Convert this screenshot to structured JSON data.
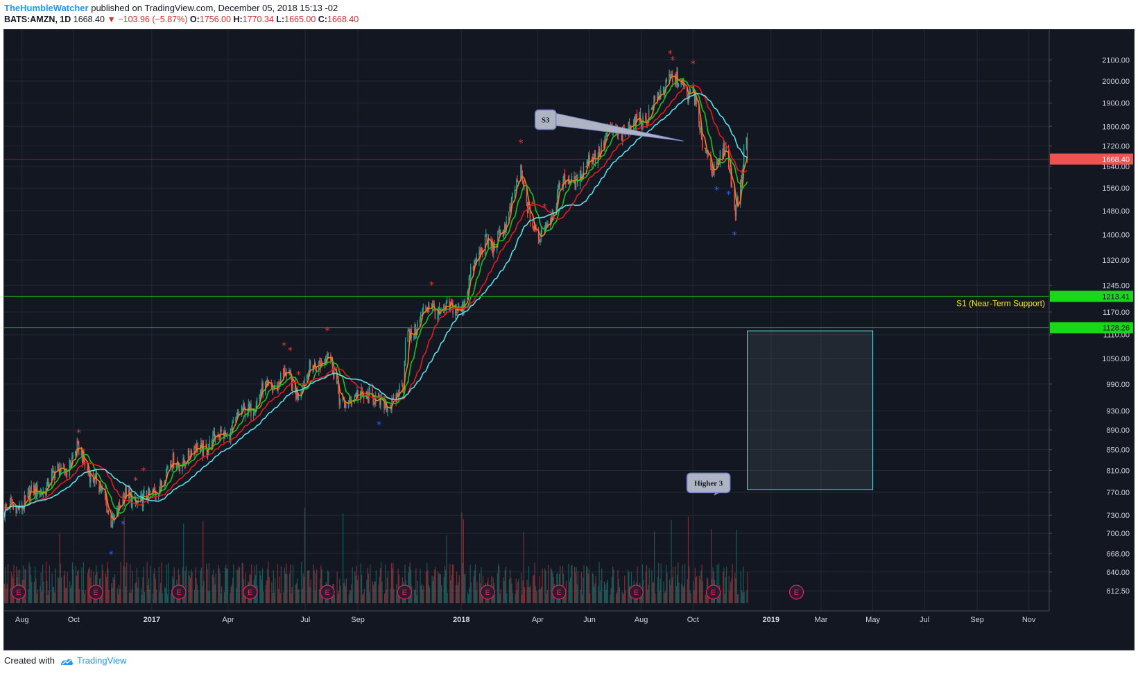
{
  "header": {
    "author": "TheHumbleWatcher",
    "published_text": "published on TradingView.com, December 05, 2018 15:13 -02",
    "symbol": "BATS:AMZN, 1D",
    "last": "1668.40",
    "change": "−103.96 (−5.87%)",
    "o_label": "O:",
    "o": "1756.00",
    "h_label": "H:",
    "h": "1770.34",
    "l_label": "L:",
    "l": "1665.00",
    "c_label": "C:",
    "c": "1668.40"
  },
  "footer": {
    "created_with": "Created with",
    "brand": "TradingView"
  },
  "colors": {
    "background": "#131722",
    "grid": "#232837",
    "price_up": "#26a69a",
    "price_down": "#ef5350",
    "sma_fast": "#f57f17",
    "sma_mid": "#1fbf1f",
    "sma_slow": "#e21b1b",
    "sma_200": "#5fdde6",
    "support_line": "#1b9e1b",
    "support_label": "#f4e316",
    "axis_text": "#d1d4dc",
    "earnings": "#e91e63"
  },
  "chart_data": {
    "type": "candlestick",
    "title": "",
    "y_scale": "log",
    "ylim": [
      600,
      2160
    ],
    "x_range": [
      "2016-07-11",
      "2019-11-25"
    ],
    "x_ticks": [
      {
        "date": "2016-08-01",
        "label": "Aug"
      },
      {
        "date": "2016-10-01",
        "label": "Oct"
      },
      {
        "date": "2017-01-01",
        "label": "2017"
      },
      {
        "date": "2017-04-01",
        "label": "Apr"
      },
      {
        "date": "2017-07-01",
        "label": "Jul"
      },
      {
        "date": "2017-09-01",
        "label": "Sep"
      },
      {
        "date": "2018-01-01",
        "label": "2018"
      },
      {
        "date": "2018-04-01",
        "label": "Apr"
      },
      {
        "date": "2018-06-01",
        "label": "Jun"
      },
      {
        "date": "2018-08-01",
        "label": "Aug"
      },
      {
        "date": "2018-10-01",
        "label": "Oct"
      },
      {
        "date": "2019-01-01",
        "label": "2019"
      },
      {
        "date": "2019-03-01",
        "label": "Mar"
      },
      {
        "date": "2019-05-01",
        "label": "May"
      },
      {
        "date": "2019-07-01",
        "label": "Jul"
      },
      {
        "date": "2019-09-01",
        "label": "Sep"
      },
      {
        "date": "2019-11-01",
        "label": "Nov"
      }
    ],
    "y_ticks": [
      "2100.00",
      "2000.00",
      "1900.00",
      "1800.00",
      "1720.00",
      "1640.00",
      "1560.00",
      "1480.00",
      "1400.00",
      "1320.00",
      "1245.00",
      "1170.00",
      "1110.00",
      "1050.00",
      "990.00",
      "930.00",
      "890.00",
      "850.00",
      "810.00",
      "770.00",
      "730.00",
      "700.00",
      "668.00",
      "640.00",
      "612.50"
    ],
    "price_path": [
      [
        "2016-07-11",
        735
      ],
      [
        "2016-08-15",
        765
      ],
      [
        "2016-09-20",
        815
      ],
      [
        "2016-10-05",
        845
      ],
      [
        "2016-10-25",
        800
      ],
      [
        "2016-11-14",
        725
      ],
      [
        "2016-12-01",
        760
      ],
      [
        "2016-12-29",
        755
      ],
      [
        "2017-01-20",
        815
      ],
      [
        "2017-02-20",
        845
      ],
      [
        "2017-03-31",
        885
      ],
      [
        "2017-05-01",
        950
      ],
      [
        "2017-06-06",
        1010
      ],
      [
        "2017-06-20",
        975
      ],
      [
        "2017-07-27",
        1070
      ],
      [
        "2017-08-10",
        960
      ],
      [
        "2017-08-25",
        950
      ],
      [
        "2017-09-15",
        975
      ],
      [
        "2017-09-26",
        935
      ],
      [
        "2017-10-25",
        975
      ],
      [
        "2017-10-27",
        1100
      ],
      [
        "2017-11-27",
        1190
      ],
      [
        "2017-12-12",
        1165
      ],
      [
        "2018-01-02",
        1190
      ],
      [
        "2018-01-29",
        1400
      ],
      [
        "2018-02-08",
        1340
      ],
      [
        "2018-03-12",
        1600
      ],
      [
        "2018-04-02",
        1370
      ],
      [
        "2018-04-27",
        1560
      ],
      [
        "2018-05-25",
        1620
      ],
      [
        "2018-06-20",
        1750
      ],
      [
        "2018-07-26",
        1810
      ],
      [
        "2018-08-20",
        1900
      ],
      [
        "2018-09-04",
        2039
      ],
      [
        "2018-09-24",
        1930
      ],
      [
        "2018-10-01",
        2000
      ],
      [
        "2018-10-11",
        1720
      ],
      [
        "2018-10-26",
        1640
      ],
      [
        "2018-11-08",
        1700
      ],
      [
        "2018-11-20",
        1500
      ],
      [
        "2018-11-26",
        1580
      ],
      [
        "2018-12-03",
        1770
      ],
      [
        "2018-12-04",
        1668.4
      ]
    ],
    "series": [
      {
        "name": "",
        "color": "#f57f17",
        "lag": 4
      },
      {
        "name": "",
        "color": "#1fbf1f",
        "lag": 12
      },
      {
        "name": "",
        "color": "#e21b1b",
        "lag": 28
      },
      {
        "name": "",
        "color": "#5fdde6",
        "lag": 45
      }
    ],
    "last_price": 1668.4,
    "levels": [
      {
        "price": 1213.41,
        "label": "1213.41"
      },
      {
        "price": 1128.26,
        "label": "1128.26"
      }
    ],
    "support_label": "S1 (Near-Term Support)",
    "callouts": [
      {
        "label": "S3",
        "date": "2018-03-29",
        "price": 1870,
        "target_date": "2018-09-20",
        "target_price": 1740
      },
      {
        "label": "Higher 3",
        "date": "2018-09-24",
        "price": 805,
        "target_date": "2018-10-26",
        "target_price": 765
      }
    ],
    "projection_box": {
      "from": "2018-12-04",
      "to": "2019-05-01",
      "top": 1120,
      "bottom": 775
    },
    "earnings_dates": [
      "2016-07-28",
      "2016-10-27",
      "2017-02-02",
      "2017-04-27",
      "2017-07-27",
      "2017-10-26",
      "2018-02-01",
      "2018-04-26",
      "2018-07-26",
      "2018-10-25",
      "2019-01-31"
    ],
    "earnings_marker": "E",
    "red_star_dates": [
      "2016-10-07",
      "2016-12-13",
      "2016-12-22",
      "2017-06-06",
      "2017-06-13",
      "2017-06-23",
      "2017-07-27",
      "2017-11-27",
      "2018-03-12",
      "2018-03-26",
      "2018-04-09",
      "2018-09-04",
      "2018-09-07",
      "2018-10-01"
    ],
    "blue_star_dates": [
      "2016-11-14",
      "2016-11-28",
      "2017-09-26",
      "2018-10-29",
      "2018-11-12",
      "2018-11-19"
    ]
  }
}
